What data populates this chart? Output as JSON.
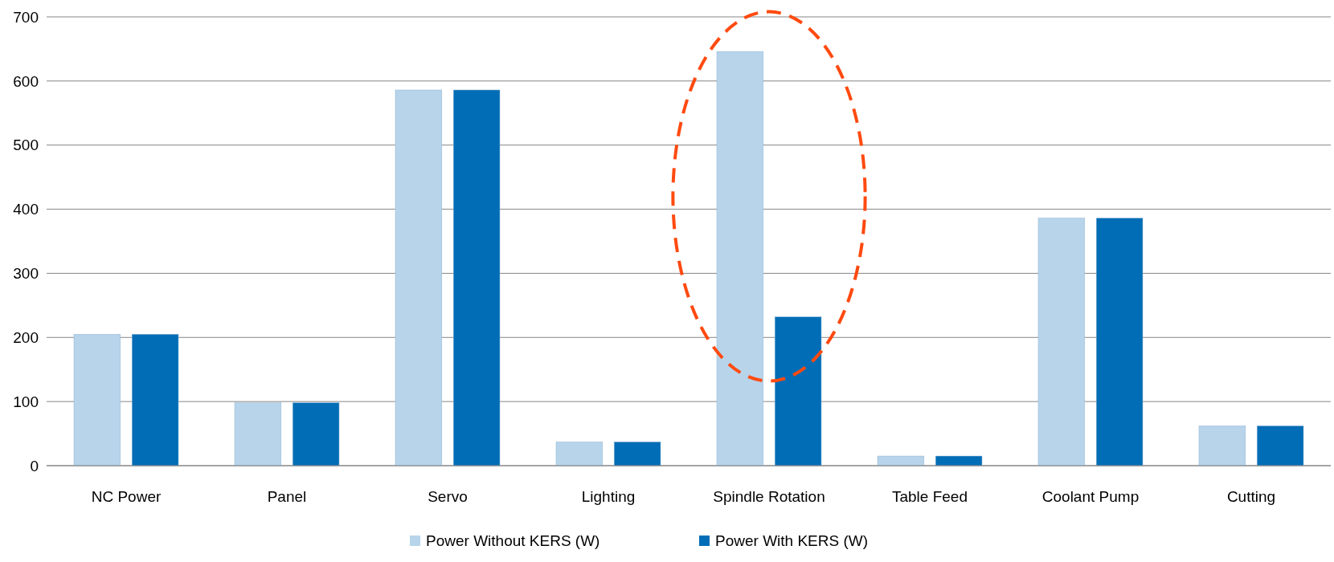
{
  "chart_data": {
    "type": "bar",
    "categories": [
      "NC Power",
      "Panel",
      "Servo",
      "Lighting",
      "Spindle Rotation",
      "Table Feed",
      "Coolant Pump",
      "Cutting"
    ],
    "series": [
      {
        "name": "Power Without KERS (W)",
        "color": "#b7d4ea",
        "values": [
          205,
          98,
          586,
          37,
          646,
          15,
          386,
          62
        ]
      },
      {
        "name": "Power With KERS (W)",
        "color": "#006db6",
        "values": [
          205,
          98,
          586,
          37,
          232,
          15,
          386,
          62
        ]
      }
    ],
    "ylim": [
      0,
      700
    ],
    "yticks": [
      0,
      100,
      200,
      300,
      400,
      500,
      600,
      700
    ],
    "grid": "y",
    "legend": "bottom"
  }
}
